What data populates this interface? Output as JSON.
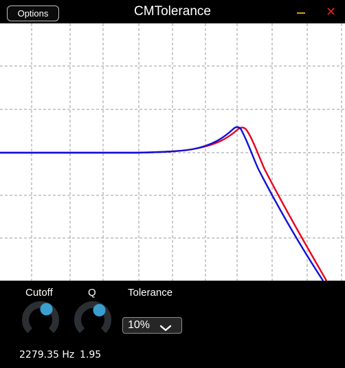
{
  "window": {
    "title": "CMTolerance",
    "options_label": "Options",
    "minimize_color": "#d4a017",
    "close_glyph": "✕",
    "close_color": "#e02020"
  },
  "graph": {
    "background": "#ffffff",
    "grid_color": "#9a9a9a",
    "curve_nominal_color": "#e8001c",
    "curve_tolerance_color": "#1010d8"
  },
  "controls": {
    "cutoff": {
      "label": "Cutoff",
      "value": "2279.35 Hz"
    },
    "q": {
      "label": "Q",
      "value": "1.95"
    },
    "tolerance": {
      "label": "Tolerance",
      "selected": "10%"
    },
    "knob_track_color": "#2b2f33",
    "knob_accent_color": "#3a9fd0"
  }
}
